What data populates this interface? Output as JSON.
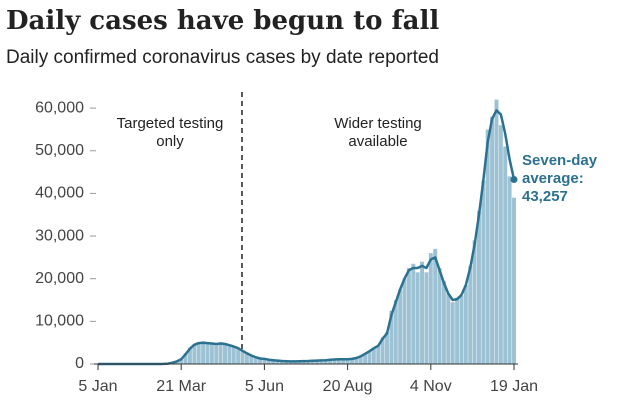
{
  "chart_data": {
    "type": "bar_line",
    "title": "Daily cases have begun to fall",
    "subtitle": "Daily confirmed coronavirus cases by date reported",
    "categories": [
      "5 Jan",
      null,
      null,
      null,
      null,
      null,
      null,
      null,
      null,
      null,
      null,
      null,
      null,
      null,
      null,
      null,
      null,
      null,
      null,
      "21 Mar",
      null,
      null,
      null,
      null,
      null,
      null,
      null,
      null,
      null,
      null,
      null,
      null,
      null,
      null,
      null,
      null,
      null,
      null,
      "5 Jun",
      null,
      null,
      null,
      null,
      null,
      null,
      null,
      null,
      null,
      null,
      null,
      null,
      null,
      null,
      null,
      null,
      null,
      null,
      "20 Aug",
      null,
      null,
      null,
      null,
      null,
      null,
      null,
      null,
      null,
      null,
      null,
      null,
      null,
      null,
      null,
      null,
      null,
      null,
      "4 Nov",
      null,
      null,
      null,
      null,
      null,
      null,
      null,
      null,
      null,
      null,
      null,
      null,
      null,
      null,
      null,
      null,
      null,
      null,
      "19 Jan"
    ],
    "series": [
      {
        "color": "#9cc2d4",
        "values": [
          0,
          0,
          0,
          0,
          0,
          0,
          0,
          0,
          0,
          0,
          0,
          0,
          0,
          0,
          0,
          50,
          150,
          400,
          700,
          1000,
          2500,
          3800,
          4600,
          5100,
          5300,
          4900,
          4700,
          4600,
          5100,
          4700,
          4400,
          4100,
          3700,
          3100,
          2500,
          1900,
          1600,
          1300,
          1200,
          1000,
          900,
          800,
          700,
          650,
          600,
          600,
          650,
          700,
          700,
          750,
          800,
          850,
          900,
          1000,
          1100,
          1200,
          1000,
          1100,
          1200,
          1400,
          1800,
          2500,
          3000,
          3800,
          4300,
          6200,
          7400,
          12500,
          15000,
          17500,
          20000,
          22500,
          23500,
          21500,
          24000,
          21500,
          26000,
          27000,
          22500,
          19500,
          16500,
          14500,
          15500,
          16000,
          18500,
          23000,
          29000,
          36000,
          43000,
          55000,
          58000,
          62000,
          56000,
          51000,
          44000,
          39000
        ]
      },
      {
        "color": "#2d7190",
        "values": [
          0,
          0,
          0,
          0,
          0,
          0,
          0,
          0,
          0,
          0,
          0,
          0,
          0,
          0,
          0,
          30,
          100,
          300,
          600,
          1100,
          2300,
          3600,
          4500,
          4900,
          5000,
          4900,
          4800,
          4700,
          4800,
          4700,
          4400,
          4100,
          3700,
          3100,
          2500,
          2000,
          1600,
          1300,
          1200,
          1000,
          900,
          800,
          700,
          650,
          600,
          600,
          650,
          680,
          700,
          750,
          800,
          850,
          900,
          980,
          1050,
          1100,
          1100,
          1100,
          1200,
          1400,
          1800,
          2400,
          3000,
          3700,
          4300,
          5900,
          7200,
          11500,
          14500,
          17500,
          20000,
          22000,
          22500,
          22500,
          23000,
          22500,
          24500,
          25000,
          22000,
          19000,
          16500,
          15000,
          15200,
          16200,
          18500,
          22500,
          28000,
          35000,
          43000,
          52000,
          57500,
          59500,
          58500,
          54000,
          48000,
          43257
        ],
        "end_label": {
          "lines": [
            "Seven-day",
            "average:"
          ],
          "value_label": "43,257"
        }
      }
    ],
    "annotations": [
      {
        "lines": [
          "Targeted testing",
          "only"
        ]
      },
      {
        "lines": [
          "Wider testing",
          "available"
        ]
      }
    ],
    "ylim": [
      0,
      68000
    ],
    "yticks": [
      0,
      {
        "value": 10000,
        "label": "10,000"
      },
      {
        "value": 20000,
        "label": "20,000"
      },
      {
        "value": 30000,
        "label": "30,000"
      },
      {
        "value": 40000,
        "label": "40,000"
      },
      {
        "value": 50000,
        "label": "50,000"
      },
      {
        "value": 60000,
        "label": "60,000"
      }
    ],
    "grid": false
  }
}
